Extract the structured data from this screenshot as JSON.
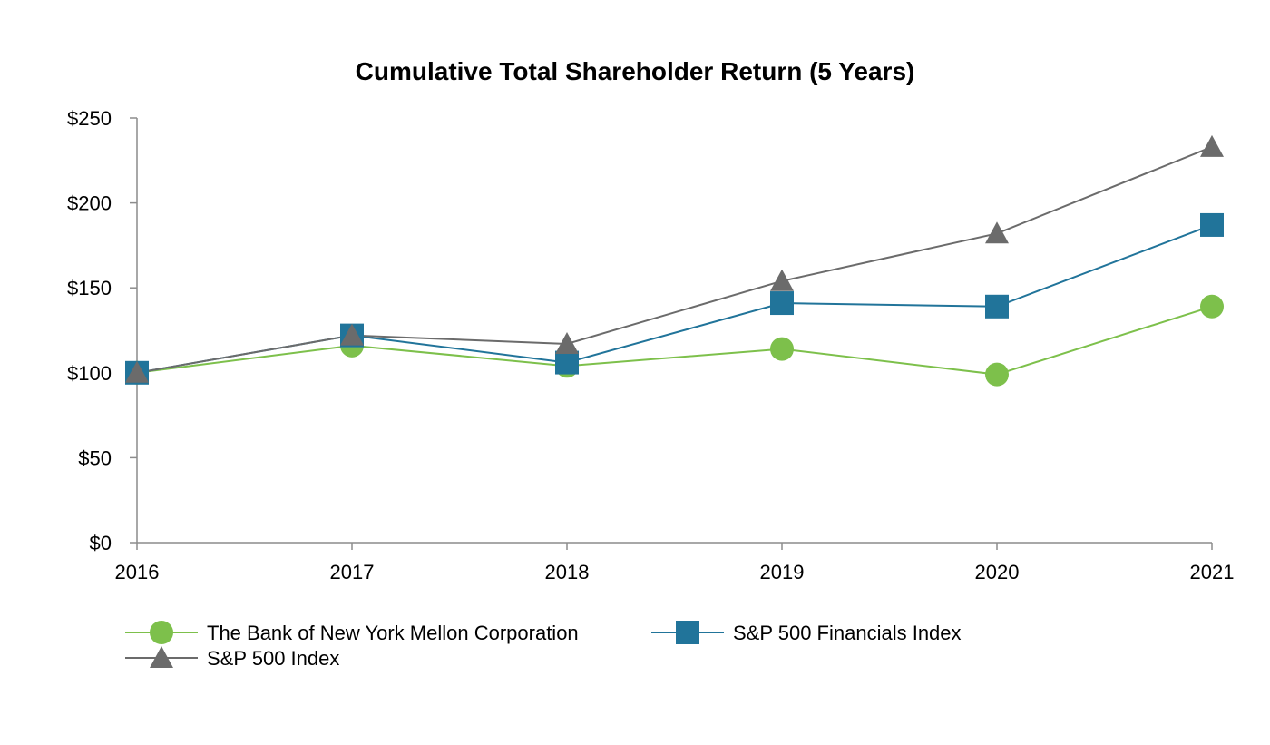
{
  "chart_data": {
    "type": "line",
    "title": "Cumulative Total Shareholder Return (5 Years)",
    "xlabel": "",
    "ylabel": "",
    "categories": [
      "2016",
      "2017",
      "2018",
      "2019",
      "2020",
      "2021"
    ],
    "ylim": [
      0,
      250
    ],
    "yticks": [
      0,
      50,
      100,
      150,
      200,
      250
    ],
    "ytick_labels": [
      "$0",
      "$50",
      "$100",
      "$150",
      "$200",
      "$250"
    ],
    "grid": false,
    "legend_position": "bottom-left",
    "series": [
      {
        "name": "The Bank of New York Mellon Corporation",
        "marker": "circle",
        "color": "#7dc04b",
        "values": [
          100,
          116,
          104,
          114,
          99,
          139
        ]
      },
      {
        "name": "S&P 500 Financials Index",
        "marker": "square",
        "color": "#21749a",
        "values": [
          100,
          122,
          106,
          141,
          139,
          187
        ]
      },
      {
        "name": "S&P 500 Index",
        "marker": "triangle",
        "color": "#6b6b6b",
        "values": [
          100,
          122,
          117,
          154,
          182,
          233
        ]
      }
    ],
    "axis_color": "#8c8c8c",
    "text_color": "#000000"
  }
}
